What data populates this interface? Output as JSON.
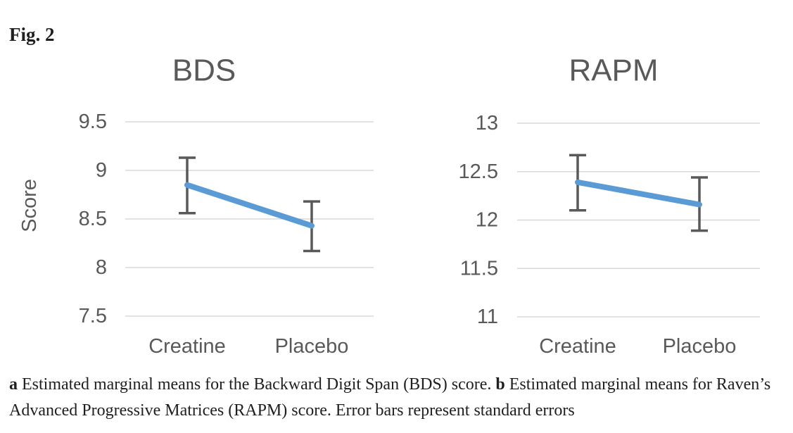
{
  "figure_label": "Fig. 2",
  "caption": {
    "a_label": "a",
    "a_text": "Estimated marginal means for the Backward Digit Span (BDS) score.",
    "b_label": "b",
    "b_text": "Estimated marginal means for Raven’s Advanced Progressive Matrices (RAPM) score. Error bars represent standard errors"
  },
  "colors": {
    "line": "#5b9bd5",
    "error_bar": "#595959",
    "gridline": "#d9d9d9",
    "axis_text": "#595959",
    "title_text": "#595959",
    "caption_text": "#1f1f1f"
  },
  "chart_data": [
    {
      "type": "line",
      "title": "BDS",
      "ylabel": "Score",
      "categories": [
        "Creatine",
        "Placebo"
      ],
      "yticks": [
        "9.5",
        "9",
        "8.5",
        "8",
        "7.5"
      ],
      "ylim": [
        7.5,
        9.5
      ],
      "grid": true,
      "legend": false,
      "series": [
        {
          "name": "Estimated marginal mean",
          "values": [
            8.85,
            8.43
          ],
          "error_upper": [
            9.13,
            8.68
          ],
          "error_lower": [
            8.56,
            8.17
          ]
        }
      ]
    },
    {
      "type": "line",
      "title": "RAPM",
      "ylabel": "",
      "categories": [
        "Creatine",
        "Placebo"
      ],
      "yticks": [
        "13",
        "12.5",
        "12",
        "11.5",
        "11"
      ],
      "ylim": [
        11,
        13
      ],
      "grid": true,
      "legend": false,
      "series": [
        {
          "name": "Estimated marginal mean",
          "values": [
            12.39,
            12.16
          ],
          "error_upper": [
            12.67,
            12.44
          ],
          "error_lower": [
            12.1,
            11.89
          ]
        }
      ]
    }
  ]
}
